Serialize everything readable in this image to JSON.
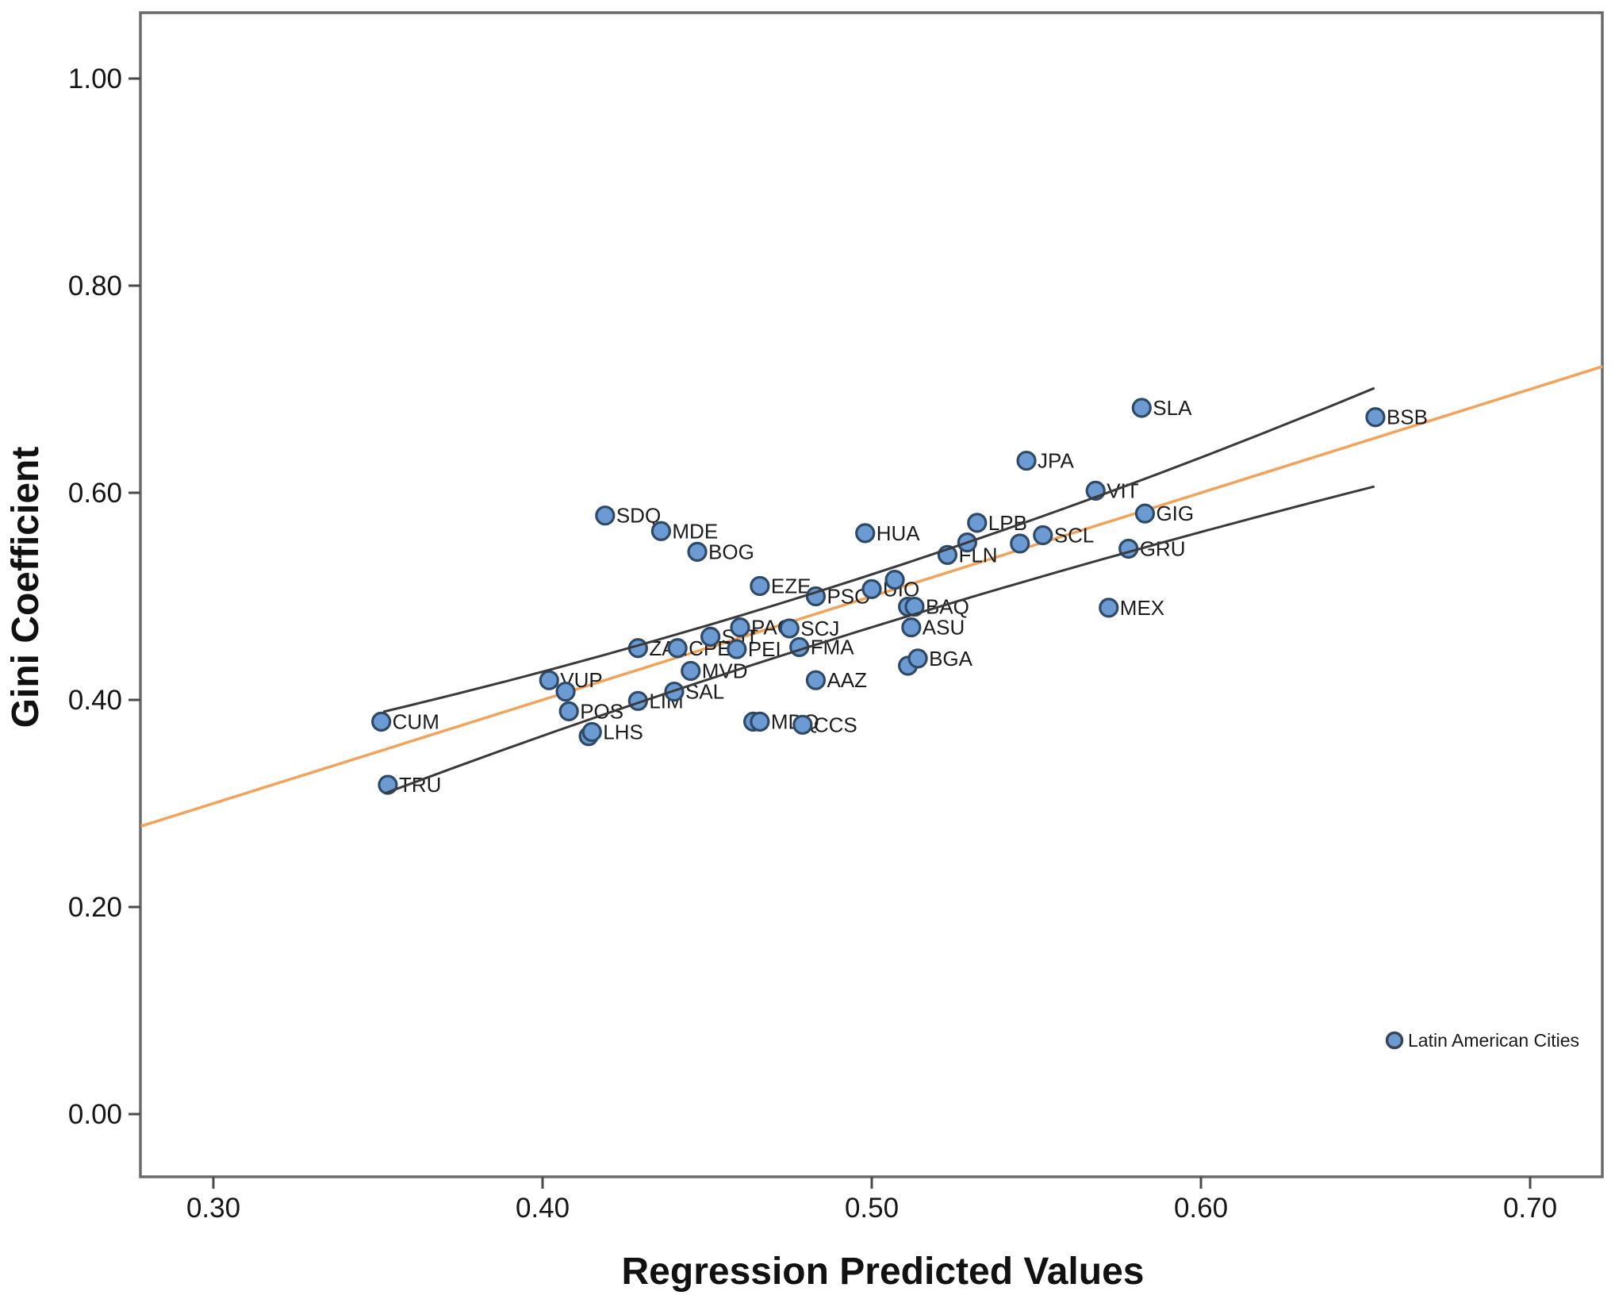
{
  "chart_data": {
    "type": "scatter",
    "title": "",
    "xlabel": "Regression Predicted Values",
    "ylabel": "Gini Coefficient",
    "xlim": [
      0.278,
      0.722
    ],
    "ylim": [
      -0.06,
      1.064
    ],
    "x_ticks": [
      "0.30",
      "0.40",
      "0.50",
      "0.60",
      "0.70"
    ],
    "y_ticks": [
      "0.00",
      "0.20",
      "0.40",
      "0.60",
      "0.80",
      "1.00"
    ],
    "grid": false,
    "legend": {
      "label": "Latin American Cities",
      "position": "bottom-right",
      "x": 0.659,
      "y": 0.072
    },
    "colors": {
      "marker_fill": "#6B9BD2",
      "marker_stroke": "#2F4A66",
      "fit_line": "#F4A259",
      "ci_band": "#3A3A3A",
      "frame": "#6a6a6a",
      "tick": "#4a4a4a"
    },
    "series": [
      {
        "name": "Latin American Cities",
        "points": [
          {
            "code": "SDQ",
            "x": 0.419,
            "y": 0.578
          },
          {
            "code": "MDE",
            "x": 0.436,
            "y": 0.563
          },
          {
            "code": "BOG",
            "x": 0.447,
            "y": 0.543
          },
          {
            "code": "CUM",
            "x": 0.351,
            "y": 0.379
          },
          {
            "code": "TRU",
            "x": 0.353,
            "y": 0.318
          },
          {
            "code": "VUP",
            "x": 0.402,
            "y": 0.419
          },
          {
            "code": "",
            "x": 0.407,
            "y": 0.408
          },
          {
            "code": "POS",
            "x": 0.408,
            "y": 0.389
          },
          {
            "code": "",
            "x": 0.414,
            "y": 0.365
          },
          {
            "code": "LHS",
            "x": 0.415,
            "y": 0.369
          },
          {
            "code": "LIM",
            "x": 0.429,
            "y": 0.399
          },
          {
            "code": "SAL",
            "x": 0.44,
            "y": 0.408
          },
          {
            "code": "MVD",
            "x": 0.445,
            "y": 0.428
          },
          {
            "code": "ZAL",
            "x": 0.429,
            "y": 0.45
          },
          {
            "code": "CPE",
            "x": 0.441,
            "y": 0.45
          },
          {
            "code": "SJT",
            "x": 0.451,
            "y": 0.461
          },
          {
            "code": "PAC",
            "x": 0.46,
            "y": 0.47
          },
          {
            "code": "PEI",
            "x": 0.459,
            "y": 0.449
          },
          {
            "code": "SCJ",
            "x": 0.475,
            "y": 0.469
          },
          {
            "code": "FMA",
            "x": 0.478,
            "y": 0.451
          },
          {
            "code": "EZE",
            "x": 0.466,
            "y": 0.51
          },
          {
            "code": "PSO",
            "x": 0.483,
            "y": 0.5
          },
          {
            "code": "UIO",
            "x": 0.5,
            "y": 0.507
          },
          {
            "code": "",
            "x": 0.507,
            "y": 0.516
          },
          {
            "code": "",
            "x": 0.464,
            "y": 0.379
          },
          {
            "code": "MDQ",
            "x": 0.466,
            "y": 0.379
          },
          {
            "code": "CCS",
            "x": 0.479,
            "y": 0.376
          },
          {
            "code": "AAZ",
            "x": 0.483,
            "y": 0.419
          },
          {
            "code": "",
            "x": 0.511,
            "y": 0.49
          },
          {
            "code": "BAQ",
            "x": 0.513,
            "y": 0.49
          },
          {
            "code": "ASU",
            "x": 0.512,
            "y": 0.47
          },
          {
            "code": "",
            "x": 0.511,
            "y": 0.433
          },
          {
            "code": "BGA",
            "x": 0.514,
            "y": 0.44
          },
          {
            "code": "HUA",
            "x": 0.498,
            "y": 0.561
          },
          {
            "code": "FLN",
            "x": 0.523,
            "y": 0.54
          },
          {
            "code": "",
            "x": 0.529,
            "y": 0.552
          },
          {
            "code": "LPB",
            "x": 0.532,
            "y": 0.571
          },
          {
            "code": "",
            "x": 0.545,
            "y": 0.551
          },
          {
            "code": "SCL",
            "x": 0.552,
            "y": 0.559
          },
          {
            "code": "JPA",
            "x": 0.547,
            "y": 0.631
          },
          {
            "code": "VIT",
            "x": 0.568,
            "y": 0.602
          },
          {
            "code": "GIG",
            "x": 0.583,
            "y": 0.58
          },
          {
            "code": "GRU",
            "x": 0.578,
            "y": 0.546
          },
          {
            "code": "MEX",
            "x": 0.572,
            "y": 0.489
          },
          {
            "code": "SLA",
            "x": 0.582,
            "y": 0.682
          },
          {
            "code": "BSB",
            "x": 0.653,
            "y": 0.673
          }
        ]
      }
    ],
    "fit_line": {
      "x1": 0.278,
      "y1": 0.278,
      "x2": 0.722,
      "y2": 0.722
    },
    "ci_bands": [
      {
        "name": "upper",
        "start": [
          0.3516,
          0.3885
        ],
        "ctrl": [
          0.5022,
          0.502
        ],
        "end": [
          0.6527,
          0.7011
        ]
      },
      {
        "name": "lower",
        "start": [
          0.352,
          0.3096
        ],
        "ctrl": [
          0.4887,
          0.4736
        ],
        "end": [
          0.6527,
          0.6061
        ]
      }
    ]
  }
}
